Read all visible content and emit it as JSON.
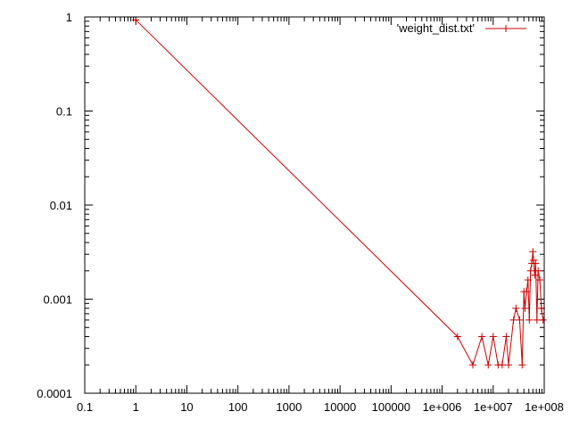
{
  "chart_data": {
    "type": "line",
    "title": "",
    "xlabel": "",
    "ylabel": "",
    "x_scale": "log",
    "y_scale": "log",
    "xlim": [
      0.1,
      100000000
    ],
    "ylim": [
      0.0001,
      1
    ],
    "grid": false,
    "legend_position": "top-right",
    "x_tick_labels": [
      "0.1",
      "1",
      "10",
      "100",
      "1000",
      "10000",
      "100000",
      "1e+006",
      "1e+007",
      "1e+008"
    ],
    "x_tick_values": [
      0.1,
      1,
      10,
      100,
      1000,
      10000,
      100000,
      1000000,
      10000000,
      100000000
    ],
    "y_tick_labels": [
      "0.0001",
      "0.001",
      "0.01",
      "0.1",
      "1"
    ],
    "y_tick_values": [
      0.0001,
      0.001,
      0.01,
      0.1,
      1
    ],
    "series": [
      {
        "name": "'weight_dist.txt'",
        "color": "#cc0000",
        "marker": "plus",
        "points": [
          [
            1,
            0.93
          ],
          [
            2000000,
            0.0004
          ],
          [
            4000000,
            0.0002
          ],
          [
            6000000,
            0.0004
          ],
          [
            8000000,
            0.0002
          ],
          [
            10000000,
            0.0004
          ],
          [
            12500000,
            0.0002
          ],
          [
            15000000,
            0.0002
          ],
          [
            18000000,
            0.0004
          ],
          [
            20000000,
            0.0002
          ],
          [
            25000000,
            0.0006
          ],
          [
            28000000,
            0.0008
          ],
          [
            33000000,
            0.0006
          ],
          [
            37000000,
            0.0002
          ],
          [
            40000000,
            0.0012
          ],
          [
            42000000,
            0.0008
          ],
          [
            45000000,
            0.0012
          ],
          [
            48000000,
            0.0016
          ],
          [
            51000000,
            0.0006
          ],
          [
            54000000,
            0.002
          ],
          [
            57000000,
            0.0024
          ],
          [
            60000000,
            0.0032
          ],
          [
            62000000,
            0.0026
          ],
          [
            65000000,
            0.0018
          ],
          [
            68000000,
            0.0024
          ],
          [
            72000000,
            0.0006
          ],
          [
            76000000,
            0.002
          ],
          [
            82000000,
            0.0016
          ],
          [
            88000000,
            0.0008
          ],
          [
            95000000,
            0.0006
          ]
        ]
      }
    ]
  }
}
